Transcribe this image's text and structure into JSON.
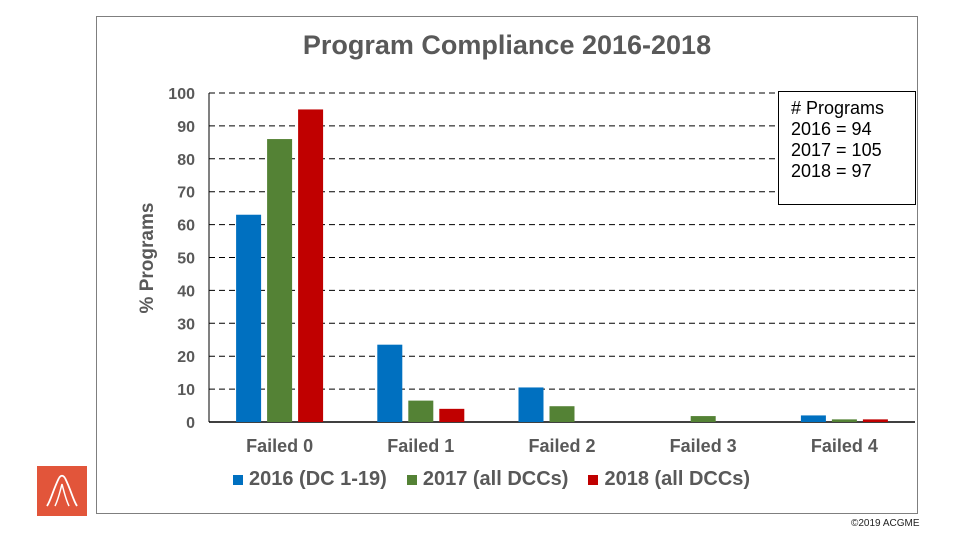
{
  "chart_data": {
    "type": "bar",
    "title": "Program Compliance 2016-2018",
    "xlabel": "",
    "ylabel": "% Programs",
    "ylim": [
      0,
      100
    ],
    "yticks": [
      0,
      10,
      20,
      30,
      40,
      50,
      60,
      70,
      80,
      90,
      100
    ],
    "categories": [
      "Failed 0",
      "Failed 1",
      "Failed 2",
      "Failed 3",
      "Failed 4"
    ],
    "series": [
      {
        "name": "2016 (DC 1-19)",
        "color": "#0070c0",
        "values": [
          63,
          23.5,
          10.5,
          0,
          2
        ]
      },
      {
        "name": "2017 (all DCCs)",
        "color": "#548235",
        "values": [
          86,
          6.5,
          4.8,
          1.8,
          0.8
        ]
      },
      {
        "name": "2018 (all DCCs)",
        "color": "#c00000",
        "values": [
          95,
          4,
          0,
          0,
          0.8
        ]
      }
    ],
    "grid": "dashed horizontal",
    "annotation": {
      "lines": [
        "# Programs",
        "2016 = 94",
        "2017 = 105",
        "2018 = 97"
      ]
    },
    "legend_position": "bottom"
  },
  "footer": {
    "copyright": "©2019 ACGME"
  },
  "logo": {
    "icon": "acgme-logo-icon",
    "color": "#e2553a"
  }
}
